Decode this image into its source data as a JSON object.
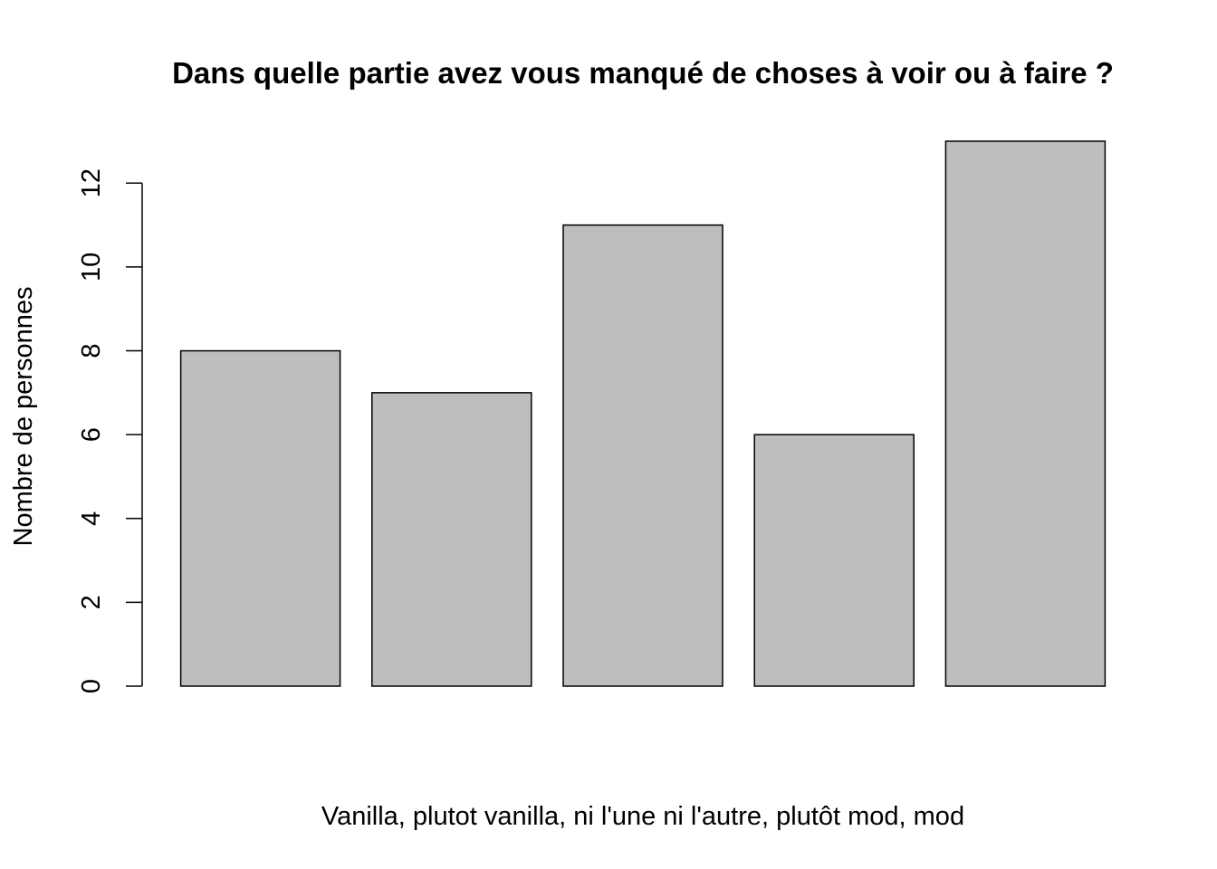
{
  "chart_data": {
    "type": "bar",
    "title": "Dans quelle partie avez vous manqué de choses à voir ou à faire ?",
    "xlabel": "Vanilla, plutot vanilla, ni l'une ni l'autre, plutôt mod, mod",
    "ylabel": "Nombre de personnes",
    "categories": [
      "Vanilla",
      "plutot vanilla",
      "ni l'une ni l'autre",
      "plutôt mod",
      "mod"
    ],
    "values": [
      8,
      7,
      11,
      6,
      13
    ],
    "ylim": [
      0,
      13
    ],
    "yticks": [
      0,
      2,
      4,
      6,
      8,
      10,
      12
    ],
    "ytick_labels": [
      "0",
      "2",
      "4",
      "6",
      "8",
      "10",
      "12"
    ],
    "bar_color": "#bebebe",
    "grid": false,
    "legend": "none"
  }
}
